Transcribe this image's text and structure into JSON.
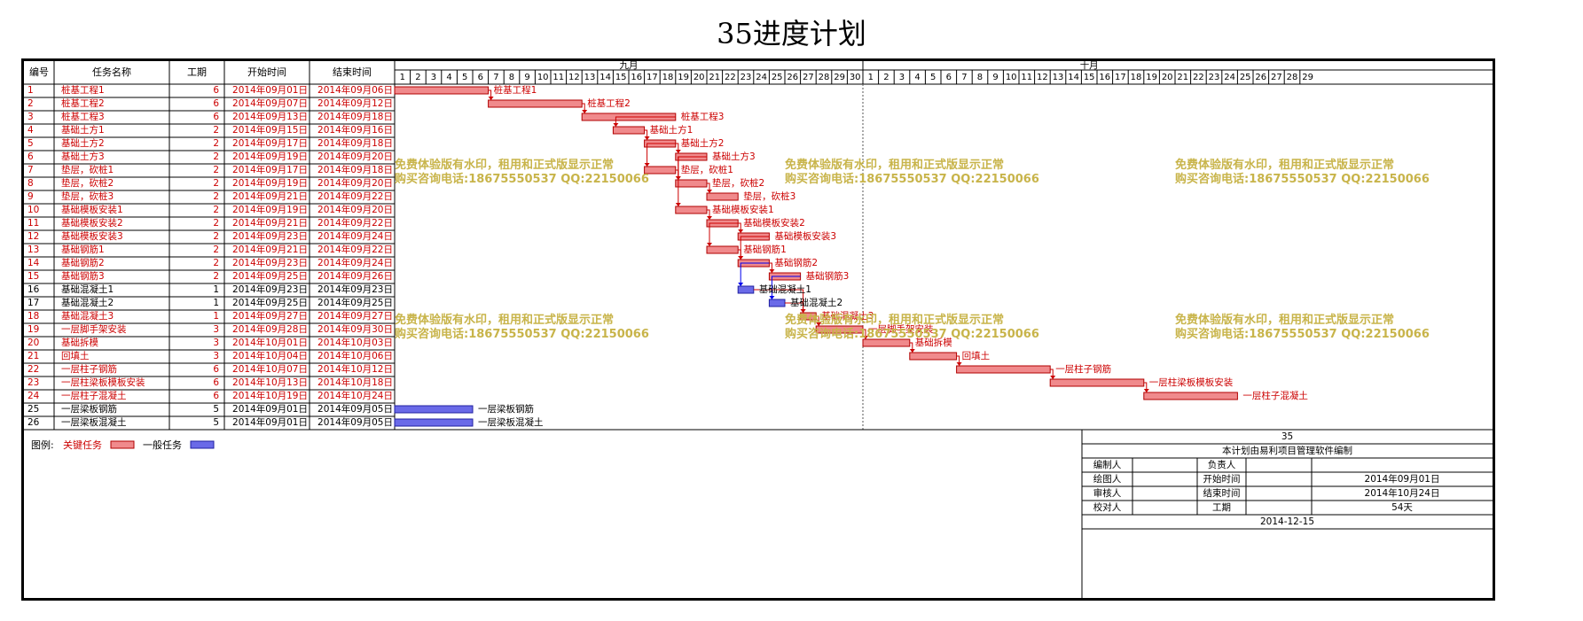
{
  "title": "35进度计划",
  "header": {
    "id": "编号",
    "name": "任务名称",
    "duration": "工期",
    "start": "开始时间",
    "end": "结束时间",
    "months": [
      "九月",
      "十月"
    ]
  },
  "tasks": [
    {
      "id": "1",
      "name": "桩基工程1",
      "dur": "6",
      "start": "2014年09月01日",
      "end": "2014年09月06日",
      "critical": true,
      "s": 1,
      "d": 6
    },
    {
      "id": "2",
      "name": "桩基工程2",
      "dur": "6",
      "start": "2014年09月07日",
      "end": "2014年09月12日",
      "critical": true,
      "s": 7,
      "d": 6
    },
    {
      "id": "3",
      "name": "桩基工程3",
      "dur": "6",
      "start": "2014年09月13日",
      "end": "2014年09月18日",
      "critical": true,
      "s": 13,
      "d": 6
    },
    {
      "id": "4",
      "name": "基础土方1",
      "dur": "2",
      "start": "2014年09月15日",
      "end": "2014年09月16日",
      "critical": true,
      "s": 15,
      "d": 2
    },
    {
      "id": "5",
      "name": "基础土方2",
      "dur": "2",
      "start": "2014年09月17日",
      "end": "2014年09月18日",
      "critical": true,
      "s": 17,
      "d": 2
    },
    {
      "id": "6",
      "name": "基础土方3",
      "dur": "2",
      "start": "2014年09月19日",
      "end": "2014年09月20日",
      "critical": true,
      "s": 19,
      "d": 2
    },
    {
      "id": "7",
      "name": "垫层，砍桩1",
      "dur": "2",
      "start": "2014年09月17日",
      "end": "2014年09月18日",
      "critical": true,
      "s": 17,
      "d": 2
    },
    {
      "id": "8",
      "name": "垫层，砍桩2",
      "dur": "2",
      "start": "2014年09月19日",
      "end": "2014年09月20日",
      "critical": true,
      "s": 19,
      "d": 2
    },
    {
      "id": "9",
      "name": "垫层，砍桩3",
      "dur": "2",
      "start": "2014年09月21日",
      "end": "2014年09月22日",
      "critical": true,
      "s": 21,
      "d": 2
    },
    {
      "id": "10",
      "name": "基础模板安装1",
      "dur": "2",
      "start": "2014年09月19日",
      "end": "2014年09月20日",
      "critical": true,
      "s": 19,
      "d": 2
    },
    {
      "id": "11",
      "name": "基础模板安装2",
      "dur": "2",
      "start": "2014年09月21日",
      "end": "2014年09月22日",
      "critical": true,
      "s": 21,
      "d": 2
    },
    {
      "id": "12",
      "name": "基础模板安装3",
      "dur": "2",
      "start": "2014年09月23日",
      "end": "2014年09月24日",
      "critical": true,
      "s": 23,
      "d": 2
    },
    {
      "id": "13",
      "name": "基础钢筋1",
      "dur": "2",
      "start": "2014年09月21日",
      "end": "2014年09月22日",
      "critical": true,
      "s": 21,
      "d": 2
    },
    {
      "id": "14",
      "name": "基础钢筋2",
      "dur": "2",
      "start": "2014年09月23日",
      "end": "2014年09月24日",
      "critical": true,
      "s": 23,
      "d": 2
    },
    {
      "id": "15",
      "name": "基础钢筋3",
      "dur": "2",
      "start": "2014年09月25日",
      "end": "2014年09月26日",
      "critical": true,
      "s": 25,
      "d": 2
    },
    {
      "id": "16",
      "name": "基础混凝土1",
      "dur": "1",
      "start": "2014年09月23日",
      "end": "2014年09月23日",
      "critical": false,
      "s": 23,
      "d": 1
    },
    {
      "id": "17",
      "name": "基础混凝土2",
      "dur": "1",
      "start": "2014年09月25日",
      "end": "2014年09月25日",
      "critical": false,
      "s": 25,
      "d": 1
    },
    {
      "id": "18",
      "name": "基础混凝土3",
      "dur": "1",
      "start": "2014年09月27日",
      "end": "2014年09月27日",
      "critical": true,
      "s": 27,
      "d": 1
    },
    {
      "id": "19",
      "name": "一层脚手架安装",
      "dur": "3",
      "start": "2014年09月28日",
      "end": "2014年09月30日",
      "critical": true,
      "s": 28,
      "d": 3
    },
    {
      "id": "20",
      "name": "基础拆模",
      "dur": "3",
      "start": "2014年10月01日",
      "end": "2014年10月03日",
      "critical": true,
      "s": 31,
      "d": 3
    },
    {
      "id": "21",
      "name": "回填土",
      "dur": "3",
      "start": "2014年10月04日",
      "end": "2014年10月06日",
      "critical": true,
      "s": 34,
      "d": 3
    },
    {
      "id": "22",
      "name": "一层柱子钢筋",
      "dur": "6",
      "start": "2014年10月07日",
      "end": "2014年10月12日",
      "critical": true,
      "s": 37,
      "d": 6
    },
    {
      "id": "23",
      "name": "一层柱梁板模板安装",
      "dur": "6",
      "start": "2014年10月13日",
      "end": "2014年10月18日",
      "critical": true,
      "s": 43,
      "d": 6
    },
    {
      "id": "24",
      "name": "一层柱子混凝土",
      "dur": "6",
      "start": "2014年10月19日",
      "end": "2014年10月24日",
      "critical": true,
      "s": 49,
      "d": 6
    },
    {
      "id": "25",
      "name": "一层梁板钢筋",
      "dur": "5",
      "start": "2014年09月01日",
      "end": "2014年09月05日",
      "critical": false,
      "s": 1,
      "d": 5
    },
    {
      "id": "26",
      "name": "一层梁板混凝土",
      "dur": "5",
      "start": "2014年09月01日",
      "end": "2014年09月05日",
      "critical": false,
      "s": 1,
      "d": 5
    }
  ],
  "links": [
    [
      1,
      2
    ],
    [
      2,
      3
    ],
    [
      3,
      4
    ],
    [
      4,
      5
    ],
    [
      5,
      6
    ],
    [
      5,
      7
    ],
    [
      6,
      8
    ],
    [
      7,
      8
    ],
    [
      8,
      9
    ],
    [
      6,
      10
    ],
    [
      10,
      11
    ],
    [
      11,
      12
    ],
    [
      11,
      13
    ],
    [
      13,
      14
    ],
    [
      14,
      15
    ],
    [
      12,
      14
    ],
    [
      14,
      16
    ],
    [
      15,
      17
    ],
    [
      16,
      18
    ],
    [
      17,
      18
    ],
    [
      18,
      19
    ],
    [
      19,
      20
    ],
    [
      20,
      21
    ],
    [
      21,
      22
    ],
    [
      22,
      23
    ],
    [
      23,
      24
    ]
  ],
  "watermark": {
    "line1": "免费体验版有水印，租用和正式版显示正常",
    "line2": "购买咨询电话:18675550537 QQ:22150066"
  },
  "legend": {
    "label": "图例:",
    "critical": "关键任务",
    "normal": "一般任务"
  },
  "colors": {
    "critical": "#e8565a",
    "critical_fill": "#f08a8c",
    "normal": "#6a6ae8",
    "text_critical": "#cc0000",
    "link": "#cc0000",
    "link_blue": "#0000ee"
  },
  "info": {
    "project": "35",
    "made_by": "本计划由易利项目管理软件编制",
    "compiler": "编制人",
    "owner": "负责人",
    "drawer": "绘图人",
    "start_label": "开始时间",
    "start_value": "2014年09月01日",
    "reviewer": "审核人",
    "end_label": "结束时间",
    "end_value": "2014年10月24日",
    "checker": "校对人",
    "duration_label": "工期",
    "duration_value": "54天",
    "date": "2014-12-15"
  }
}
